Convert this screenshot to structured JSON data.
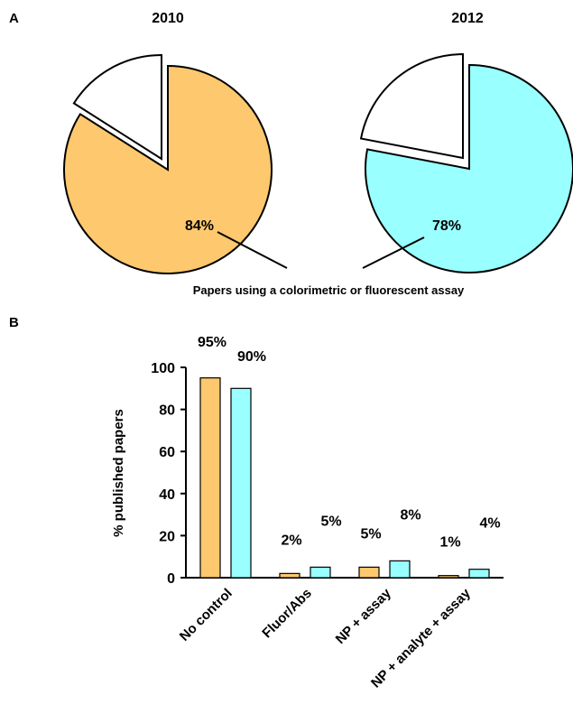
{
  "panel_a": {
    "label": "A",
    "caption": "Papers using a colorimetric or fluorescent assay"
  },
  "panel_b": {
    "label": "B"
  },
  "colors": {
    "year_2010": "#FDC86E",
    "year_2012": "#99FFFF",
    "outline": "#000000",
    "background": "#FFFFFF"
  },
  "chart_data": [
    {
      "type": "pie",
      "title": "2010",
      "slices": [
        {
          "label": "84%",
          "value": 84,
          "color": "#FDC86E"
        },
        {
          "label": "",
          "value": 16,
          "color": "#FFFFFF",
          "exploded": true
        }
      ]
    },
    {
      "type": "pie",
      "title": "2012",
      "slices": [
        {
          "label": "78%",
          "value": 78,
          "color": "#99FFFF"
        },
        {
          "label": "",
          "value": 22,
          "color": "#FFFFFF",
          "exploded": true
        }
      ]
    },
    {
      "type": "bar",
      "categories": [
        "No control",
        "Fluor/Abs",
        "NP + assay",
        "NP + analyte + assay"
      ],
      "series": [
        {
          "name": "2010",
          "color": "#FDC86E",
          "values": [
            95,
            2,
            5,
            1
          ],
          "labels": [
            "95%",
            "2%",
            "5%",
            "1%"
          ]
        },
        {
          "name": "2012",
          "color": "#99FFFF",
          "values": [
            90,
            5,
            8,
            4
          ],
          "labels": [
            "90%",
            "5%",
            "8%",
            "4%"
          ]
        }
      ],
      "ylabel": "% published papers",
      "ylim": [
        0,
        100
      ],
      "yticks": [
        0,
        20,
        40,
        60,
        80,
        100
      ],
      "grid": false,
      "legend": "none"
    }
  ]
}
